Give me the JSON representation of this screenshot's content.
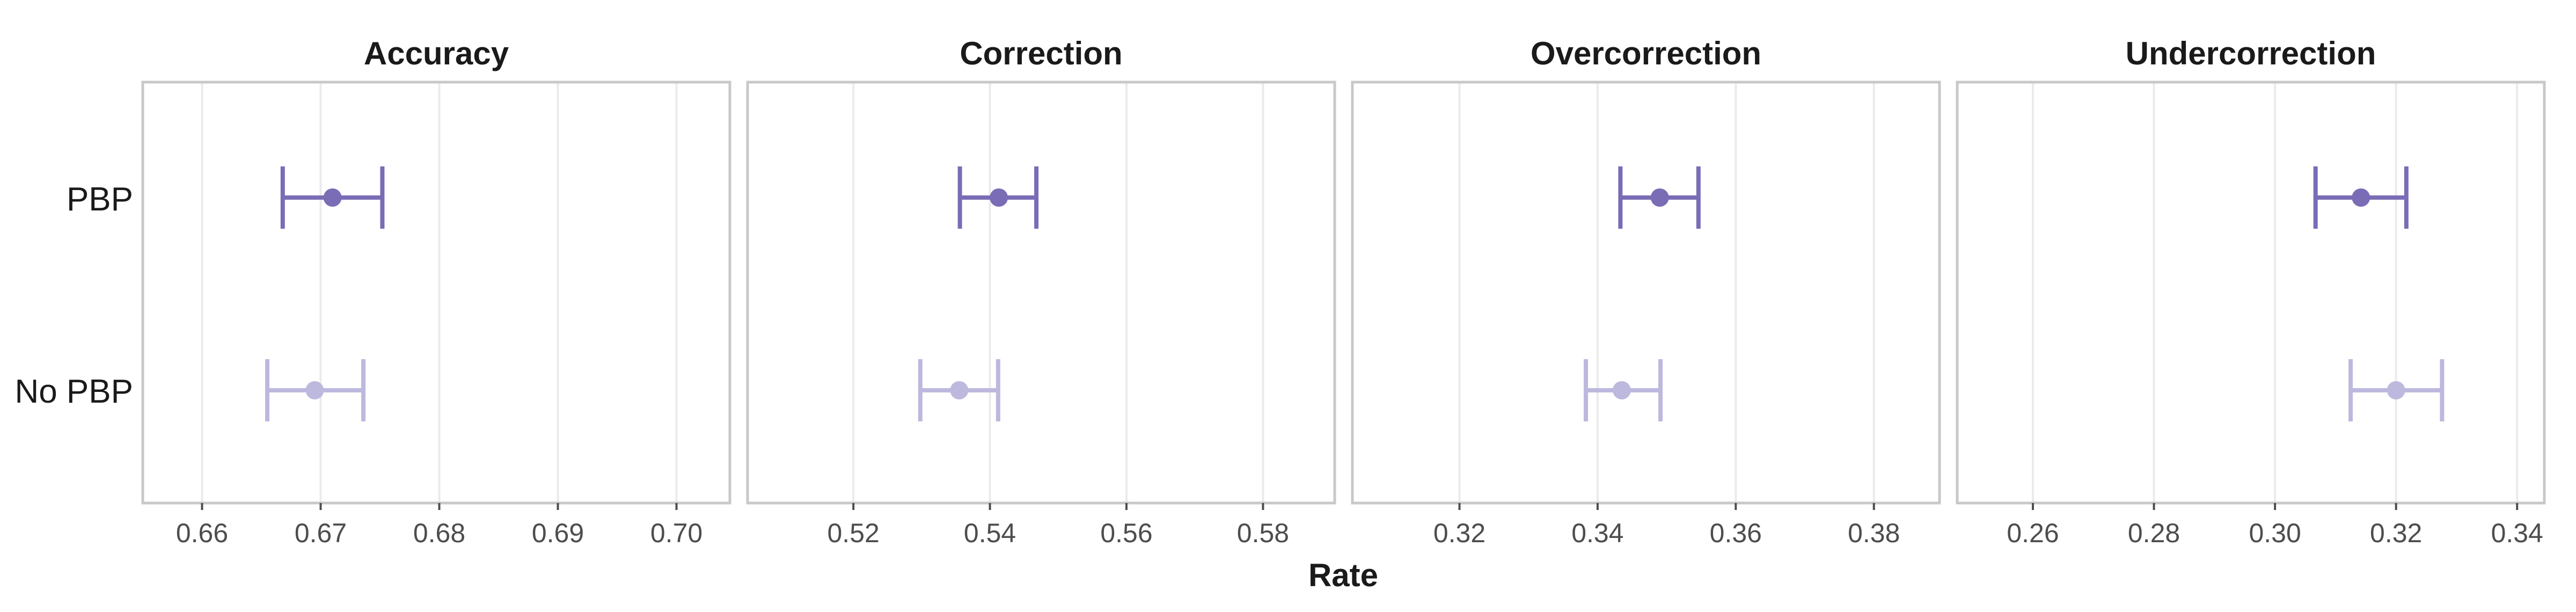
{
  "chart_data": {
    "type": "errorbar",
    "xlabel": "Rate",
    "categories": [
      "PBP",
      "No PBP"
    ],
    "colors": {
      "PBP": "#7a6cb5",
      "No PBP": "#bdb8de"
    },
    "grid": true,
    "panels": [
      {
        "title": "Accuracy",
        "xlim": [
          0.655,
          0.7045
        ],
        "ticks": [
          0.66,
          0.67,
          0.68,
          0.69,
          0.7
        ],
        "tick_labels": [
          "0.66",
          "0.67",
          "0.68",
          "0.69",
          "0.70"
        ],
        "points": [
          {
            "group": "PBP",
            "mean": 0.671,
            "lower": 0.6668,
            "upper": 0.6752
          },
          {
            "group": "No PBP",
            "mean": 0.6695,
            "lower": 0.6655,
            "upper": 0.6736
          }
        ]
      },
      {
        "title": "Correction",
        "xlim": [
          0.5045,
          0.5905
        ],
        "ticks": [
          0.52,
          0.54,
          0.56,
          0.58
        ],
        "tick_labels": [
          "0.52",
          "0.54",
          "0.56",
          "0.58"
        ],
        "points": [
          {
            "group": "PBP",
            "mean": 0.5413,
            "lower": 0.5356,
            "upper": 0.5468
          },
          {
            "group": "No PBP",
            "mean": 0.5355,
            "lower": 0.5298,
            "upper": 0.5412
          }
        ]
      },
      {
        "title": "Overcorrection",
        "xlim": [
          0.3045,
          0.3895
        ],
        "ticks": [
          0.32,
          0.34,
          0.36,
          0.38
        ],
        "tick_labels": [
          "0.32",
          "0.34",
          "0.36",
          "0.38"
        ],
        "points": [
          {
            "group": "PBP",
            "mean": 0.349,
            "lower": 0.3433,
            "upper": 0.3546
          },
          {
            "group": "No PBP",
            "mean": 0.3435,
            "lower": 0.3383,
            "upper": 0.3491
          }
        ]
      },
      {
        "title": "Undercorrection",
        "xlim": [
          0.2475,
          0.3445
        ],
        "ticks": [
          0.26,
          0.28,
          0.3,
          0.32,
          0.34
        ],
        "tick_labels": [
          "0.26",
          "0.28",
          "0.30",
          "0.32",
          "0.34"
        ],
        "points": [
          {
            "group": "PBP",
            "mean": 0.3142,
            "lower": 0.3067,
            "upper": 0.3217
          },
          {
            "group": "No PBP",
            "mean": 0.32,
            "lower": 0.3125,
            "upper": 0.3276
          }
        ]
      }
    ]
  }
}
